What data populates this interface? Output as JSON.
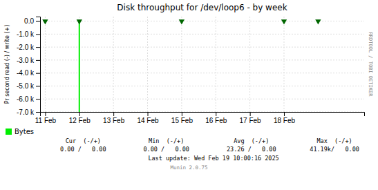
{
  "chart_data": {
    "type": "line",
    "title": "Disk throughput for /dev/loop6 - by week",
    "ylabel": "Pr second read (-) / write (+)",
    "xlim": [
      1739132640,
      1739953440
    ],
    "xticks": [
      {
        "value": 1739145600,
        "label": "11 Feb"
      },
      {
        "value": 1739232000,
        "label": "12 Feb"
      },
      {
        "value": 1739318400,
        "label": "13 Feb"
      },
      {
        "value": 1739404800,
        "label": "14 Feb"
      },
      {
        "value": 1739491200,
        "label": "15 Feb"
      },
      {
        "value": 1739577600,
        "label": "16 Feb"
      },
      {
        "value": 1739664000,
        "label": "17 Feb"
      },
      {
        "value": 1739750400,
        "label": "18 Feb"
      }
    ],
    "ylim": [
      -7000,
      350
    ],
    "yticks": [
      {
        "value": 0,
        "label": "0.0"
      },
      {
        "value": -1000,
        "label": "-1.0 k"
      },
      {
        "value": -2000,
        "label": "-2.0 k"
      },
      {
        "value": -3000,
        "label": "-3.0 k"
      },
      {
        "value": -4000,
        "label": "-4.0 k"
      },
      {
        "value": -5000,
        "label": "-5.0 k"
      },
      {
        "value": -6000,
        "label": "-6.0 k"
      },
      {
        "value": -7000,
        "label": "-7.0 k"
      }
    ],
    "grid": true,
    "legend": "bottom",
    "series": [
      {
        "name": "Bytes",
        "type": "line",
        "color": "#00EE00",
        "x": [
          1739232000,
          1739232000
        ],
        "values": [
          0,
          -7000
        ]
      },
      {
        "type": "scatter",
        "marker": "triangle-down",
        "color": "#006600",
        "x": [
          1739145600,
          1739232000,
          1739491200,
          1739750400,
          1739836800
        ],
        "values": [
          0,
          0,
          0,
          0,
          0
        ]
      }
    ],
    "annotations": [
      "Cur  (-/+)",
      "Min  (-/+)",
      "Avg  (-/+)",
      "Max  (-/+)",
      "0.00 /   0.00",
      "0.00 /   0.00",
      "23.26 /   0.00",
      "41.19k/   0.00",
      "Last update: Wed Feb 19 10:00:16 2025",
      "Munin 2.0.75",
      "RRDTOOL / TOBI OETIKER"
    ]
  }
}
